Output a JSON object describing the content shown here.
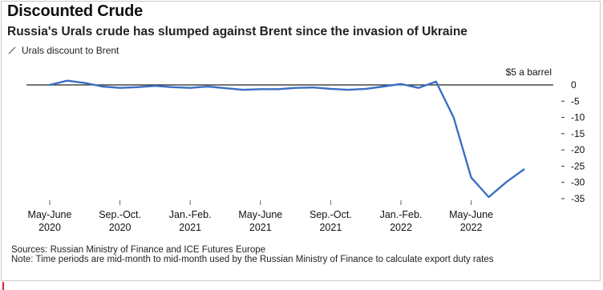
{
  "header": {
    "title": "Discounted Crude",
    "subtitle": "Russia's Urals crude has slumped against Brent since the invasion of Ukraine",
    "legend_label": "Urals discount to Brent"
  },
  "footer": {
    "sources": "Sources: Russian Ministry of Finance and ICE Futures Europe",
    "note": "Note: Time periods are mid-month to mid-month used by the Russian Ministry of Finance to calculate export duty rates"
  },
  "colors": {
    "line": "#3b6fc4",
    "zero_line": "#222222",
    "text": "#111111"
  },
  "chart_data": {
    "type": "line",
    "title": "Discounted Crude",
    "subtitle": "Russia's Urals crude has slumped against Brent since the invasion of Ukraine",
    "xlabel": "",
    "ylabel": "$5 a barrel",
    "ylim": [
      -35,
      0
    ],
    "y_ticks": [
      0,
      -5,
      -10,
      -15,
      -20,
      -25,
      -30,
      -35
    ],
    "y_tick_labels": [
      "0",
      "-5",
      "-10",
      "-15",
      "-20",
      "-25",
      "-30",
      "-35"
    ],
    "y_unit_label": "$5 a barrel",
    "x_tick_labels": [
      {
        "line1": "May-June",
        "line2": "2020"
      },
      {
        "line1": "Sep.-Oct.",
        "line2": "2020"
      },
      {
        "line1": "Jan.-Feb.",
        "line2": "2021"
      },
      {
        "line1": "May-June",
        "line2": "2021"
      },
      {
        "line1": "Sep.-Oct.",
        "line2": "2021"
      },
      {
        "line1": "Jan.-Feb.",
        "line2": "2022"
      },
      {
        "line1": "May-June",
        "line2": "2022"
      }
    ],
    "x_tick_index": [
      0,
      4,
      8,
      12,
      16,
      20,
      24
    ],
    "legend_position": "top-left",
    "grid": false,
    "series": [
      {
        "name": "Urals discount to Brent",
        "values": [
          0.0,
          1.3,
          0.6,
          -0.5,
          -0.9,
          -0.7,
          -0.3,
          -0.7,
          -0.9,
          -0.5,
          -1.0,
          -1.5,
          -1.3,
          -1.3,
          -0.9,
          -0.8,
          -1.2,
          -1.5,
          -1.2,
          -0.5,
          0.3,
          -0.9,
          1.0,
          -10.0,
          -28.5,
          -34.5,
          -29.9,
          -26.0
        ]
      }
    ]
  }
}
